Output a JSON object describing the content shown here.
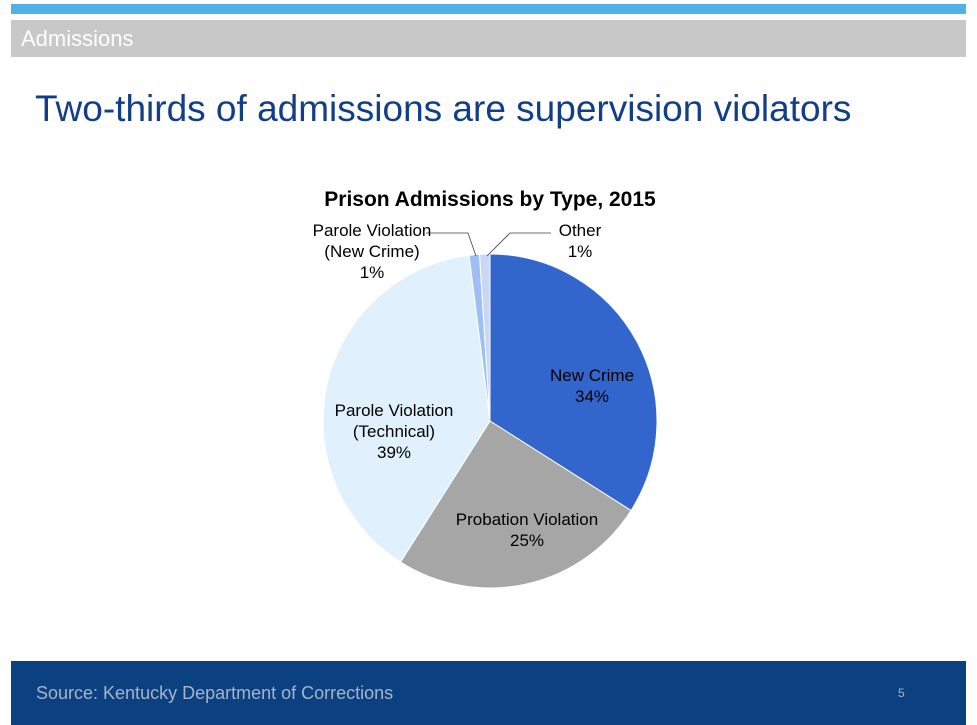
{
  "header": {
    "section": "Admissions",
    "title": "Two-thirds of admissions are supervision violators"
  },
  "footer": {
    "source": "Source: Kentucky Department of Corrections",
    "page_number": "5"
  },
  "chart_data": {
    "type": "pie",
    "title": "Prison Admissions by Type, 2015",
    "start": "12 o'clock",
    "direction": "clockwise",
    "slices": [
      {
        "name": "New Crime",
        "label_lines": [
          "New Crime"
        ],
        "percent_label": "34%",
        "value": 34,
        "color": "#3366cc"
      },
      {
        "name": "Probation Violation",
        "label_lines": [
          "Probation Violation"
        ],
        "percent_label": "25%",
        "value": 25,
        "color": "#a6a6a6"
      },
      {
        "name": "Parole Violation (Technical)",
        "label_lines": [
          "Parole Violation",
          "(Technical)"
        ],
        "percent_label": "39%",
        "value": 39,
        "color": "#e0f1fd"
      },
      {
        "name": "Parole Violation (New Crime)",
        "label_lines": [
          "Parole Violation",
          "(New Crime)"
        ],
        "percent_label": "1%",
        "value": 1,
        "color": "#9dbff3"
      },
      {
        "name": "Other",
        "label_lines": [
          "Other"
        ],
        "percent_label": "1%",
        "value": 1,
        "color": "#cad6f5"
      }
    ]
  }
}
